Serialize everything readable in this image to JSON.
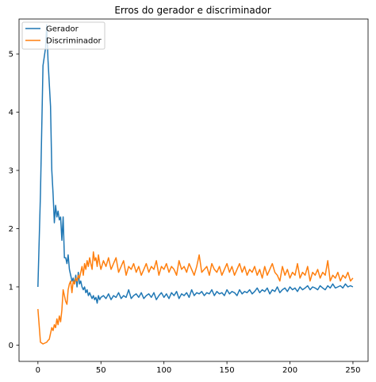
{
  "chart_data": {
    "type": "line",
    "title": "Erros do gerador e discriminador",
    "xlim": [
      -15,
      262
    ],
    "ylim": [
      -0.28,
      5.6
    ],
    "x_ticks": [
      0,
      50,
      100,
      150,
      200,
      250
    ],
    "y_ticks": [
      0,
      1,
      2,
      3,
      4,
      5
    ],
    "legend_position": "top-left",
    "series": [
      {
        "name": "Gerador",
        "color": "#1f77b4",
        "x": [
          0,
          2,
          4,
          6,
          7,
          8,
          9,
          10,
          11,
          12,
          13,
          14,
          15,
          16,
          17,
          18,
          19,
          20,
          21,
          22,
          23,
          24,
          25,
          26,
          27,
          28,
          29,
          30,
          31,
          32,
          33,
          34,
          35,
          36,
          37,
          38,
          39,
          40,
          41,
          42,
          43,
          44,
          45,
          46,
          47,
          48,
          49,
          50,
          52,
          54,
          56,
          58,
          60,
          62,
          64,
          66,
          68,
          70,
          72,
          74,
          76,
          78,
          80,
          82,
          84,
          86,
          88,
          90,
          92,
          94,
          96,
          98,
          100,
          102,
          104,
          106,
          108,
          110,
          112,
          114,
          116,
          118,
          120,
          122,
          124,
          126,
          128,
          130,
          132,
          134,
          136,
          138,
          140,
          142,
          144,
          146,
          148,
          150,
          152,
          154,
          156,
          158,
          160,
          162,
          164,
          166,
          168,
          170,
          172,
          174,
          176,
          178,
          180,
          182,
          184,
          186,
          188,
          190,
          192,
          194,
          196,
          198,
          200,
          202,
          204,
          206,
          208,
          210,
          212,
          214,
          216,
          218,
          220,
          222,
          224,
          226,
          228,
          230,
          232,
          234,
          236,
          238,
          240,
          242,
          244,
          246,
          248,
          250
        ],
        "values": [
          1.0,
          2.6,
          4.8,
          5.1,
          5.5,
          4.9,
          4.5,
          4.1,
          3.0,
          2.6,
          2.1,
          2.4,
          2.2,
          2.3,
          2.15,
          2.2,
          1.8,
          2.2,
          1.5,
          1.5,
          1.4,
          1.55,
          1.3,
          1.2,
          1.1,
          1.15,
          1.05,
          1.2,
          1.0,
          1.25,
          1.05,
          1.1,
          1.0,
          0.95,
          1.0,
          0.9,
          0.95,
          0.85,
          0.9,
          0.85,
          0.8,
          0.85,
          0.78,
          0.82,
          0.72,
          0.85,
          0.78,
          0.82,
          0.85,
          0.8,
          0.88,
          0.78,
          0.85,
          0.82,
          0.9,
          0.8,
          0.85,
          0.82,
          0.95,
          0.8,
          0.85,
          0.88,
          0.82,
          0.9,
          0.8,
          0.85,
          0.88,
          0.82,
          0.9,
          0.78,
          0.85,
          0.9,
          0.82,
          0.88,
          0.8,
          0.9,
          0.85,
          0.92,
          0.8,
          0.88,
          0.85,
          0.9,
          0.82,
          0.95,
          0.85,
          0.9,
          0.88,
          0.92,
          0.85,
          0.9,
          0.88,
          0.95,
          0.85,
          0.92,
          0.88,
          0.9,
          0.85,
          0.95,
          0.88,
          0.92,
          0.9,
          0.85,
          0.95,
          0.88,
          0.92,
          0.9,
          0.95,
          0.88,
          0.92,
          0.98,
          0.9,
          0.95,
          0.92,
          0.98,
          0.88,
          0.95,
          0.92,
          1.0,
          0.9,
          0.95,
          0.98,
          0.92,
          1.0,
          0.95,
          0.98,
          0.92,
          1.0,
          0.95,
          0.98,
          1.02,
          0.95,
          1.0,
          0.98,
          0.95,
          1.02,
          0.98,
          0.95,
          1.02,
          0.98,
          1.05,
          0.98,
          1.0,
          1.02,
          0.98,
          1.05,
          1.0,
          1.02,
          1.0
        ]
      },
      {
        "name": "Discriminador",
        "color": "#ff7f0e",
        "x": [
          0,
          2,
          4,
          6,
          7,
          8,
          9,
          10,
          11,
          12,
          13,
          14,
          15,
          16,
          17,
          18,
          19,
          20,
          21,
          22,
          23,
          24,
          25,
          26,
          27,
          28,
          29,
          30,
          31,
          32,
          33,
          34,
          35,
          36,
          37,
          38,
          39,
          40,
          41,
          42,
          43,
          44,
          45,
          46,
          47,
          48,
          49,
          50,
          52,
          54,
          56,
          58,
          60,
          62,
          64,
          66,
          68,
          70,
          72,
          74,
          76,
          78,
          80,
          82,
          84,
          86,
          88,
          90,
          92,
          94,
          96,
          98,
          100,
          102,
          104,
          106,
          108,
          110,
          112,
          114,
          116,
          118,
          120,
          122,
          124,
          126,
          128,
          130,
          132,
          134,
          136,
          138,
          140,
          142,
          144,
          146,
          148,
          150,
          152,
          154,
          156,
          158,
          160,
          162,
          164,
          166,
          168,
          170,
          172,
          174,
          176,
          178,
          180,
          182,
          184,
          186,
          188,
          190,
          192,
          194,
          196,
          198,
          200,
          202,
          204,
          206,
          208,
          210,
          212,
          214,
          216,
          218,
          220,
          222,
          224,
          226,
          228,
          230,
          232,
          234,
          236,
          238,
          240,
          242,
          244,
          246,
          248,
          250
        ],
        "values": [
          0.62,
          0.05,
          0.02,
          0.04,
          0.05,
          0.08,
          0.1,
          0.2,
          0.3,
          0.25,
          0.35,
          0.3,
          0.45,
          0.35,
          0.5,
          0.4,
          0.6,
          0.95,
          0.85,
          0.75,
          0.7,
          0.95,
          1.05,
          1.1,
          0.9,
          1.1,
          1.05,
          1.15,
          1.1,
          1.2,
          1.15,
          1.25,
          1.35,
          1.2,
          1.4,
          1.3,
          1.45,
          1.35,
          1.5,
          1.4,
          1.3,
          1.6,
          1.45,
          1.5,
          1.35,
          1.55,
          1.4,
          1.3,
          1.45,
          1.35,
          1.5,
          1.3,
          1.4,
          1.5,
          1.25,
          1.35,
          1.45,
          1.2,
          1.35,
          1.3,
          1.4,
          1.25,
          1.35,
          1.2,
          1.3,
          1.4,
          1.25,
          1.35,
          1.3,
          1.45,
          1.2,
          1.35,
          1.3,
          1.4,
          1.25,
          1.35,
          1.3,
          1.2,
          1.45,
          1.3,
          1.35,
          1.25,
          1.4,
          1.3,
          1.2,
          1.35,
          1.55,
          1.25,
          1.3,
          1.35,
          1.2,
          1.4,
          1.3,
          1.25,
          1.35,
          1.2,
          1.3,
          1.4,
          1.25,
          1.35,
          1.2,
          1.3,
          1.4,
          1.25,
          1.35,
          1.2,
          1.3,
          1.25,
          1.35,
          1.2,
          1.3,
          1.15,
          1.35,
          1.2,
          1.3,
          1.4,
          1.25,
          1.2,
          1.1,
          1.35,
          1.2,
          1.3,
          1.15,
          1.25,
          1.2,
          1.4,
          1.15,
          1.25,
          1.2,
          1.35,
          1.1,
          1.25,
          1.2,
          1.3,
          1.15,
          1.25,
          1.2,
          1.45,
          1.1,
          1.2,
          1.15,
          1.25,
          1.1,
          1.2,
          1.15,
          1.25,
          1.1,
          1.15
        ]
      }
    ]
  }
}
